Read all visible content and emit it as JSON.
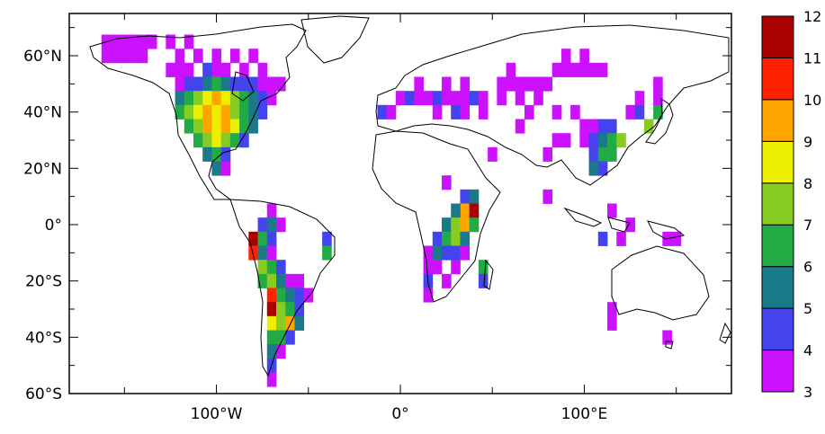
{
  "chart_data": {
    "type": "heatmap",
    "projection": "equirectangular-world-map",
    "title": "",
    "xlabel": "",
    "ylabel": "",
    "x_range": [
      -180,
      180
    ],
    "y_range": [
      -60,
      75
    ],
    "x_ticks": [
      {
        "value": -100,
        "label": "100°W"
      },
      {
        "value": 0,
        "label": "0°"
      },
      {
        "value": 100,
        "label": "100°E"
      }
    ],
    "y_ticks": [
      {
        "value": 60,
        "label": "60°N"
      },
      {
        "value": 40,
        "label": "40°N"
      },
      {
        "value": 20,
        "label": "20°N"
      },
      {
        "value": 0,
        "label": "0°"
      },
      {
        "value": -20,
        "label": "20°S"
      },
      {
        "value": -40,
        "label": "40°S"
      },
      {
        "value": -60,
        "label": "60°S"
      }
    ],
    "colorbar": {
      "position": "right",
      "labels": [
        "12",
        "11",
        "10",
        "9",
        "8",
        "7",
        "6",
        "5",
        "4",
        "3"
      ],
      "bins": [
        {
          "min": 3,
          "max": 4,
          "color": "#cc11ff"
        },
        {
          "min": 4,
          "max": 5,
          "color": "#4444ee"
        },
        {
          "min": 5,
          "max": 6,
          "color": "#1a7a8a"
        },
        {
          "min": 6,
          "max": 7,
          "color": "#22aa44"
        },
        {
          "min": 7,
          "max": 8,
          "color": "#88cc22"
        },
        {
          "min": 8,
          "max": 9,
          "color": "#eeee00"
        },
        {
          "min": 9,
          "max": 10,
          "color": "#ffa500"
        },
        {
          "min": 10,
          "max": 11,
          "color": "#ff2200"
        },
        {
          "min": 11,
          "max": 12,
          "color": "#aa0000"
        }
      ]
    },
    "cell_size_deg": 5,
    "cells": [
      {
        "lon": -160,
        "lat": 65,
        "v": 3
      },
      {
        "lon": -155,
        "lat": 65,
        "v": 3
      },
      {
        "lon": -150,
        "lat": 65,
        "v": 3
      },
      {
        "lon": -145,
        "lat": 65,
        "v": 3
      },
      {
        "lon": -140,
        "lat": 65,
        "v": 3
      },
      {
        "lon": -135,
        "lat": 65,
        "v": 3
      },
      {
        "lon": -125,
        "lat": 65,
        "v": 3
      },
      {
        "lon": -115,
        "lat": 65,
        "v": 3
      },
      {
        "lon": -160,
        "lat": 60,
        "v": 3
      },
      {
        "lon": -155,
        "lat": 60,
        "v": 3
      },
      {
        "lon": -150,
        "lat": 60,
        "v": 3
      },
      {
        "lon": -145,
        "lat": 60,
        "v": 3
      },
      {
        "lon": -140,
        "lat": 60,
        "v": 3
      },
      {
        "lon": -120,
        "lat": 60,
        "v": 3
      },
      {
        "lon": -110,
        "lat": 60,
        "v": 3
      },
      {
        "lon": -100,
        "lat": 60,
        "v": 3
      },
      {
        "lon": -90,
        "lat": 60,
        "v": 3
      },
      {
        "lon": -80,
        "lat": 60,
        "v": 3
      },
      {
        "lon": -125,
        "lat": 55,
        "v": 3
      },
      {
        "lon": -120,
        "lat": 55,
        "v": 3
      },
      {
        "lon": -115,
        "lat": 55,
        "v": 3
      },
      {
        "lon": -105,
        "lat": 55,
        "v": 4
      },
      {
        "lon": -100,
        "lat": 55,
        "v": 3
      },
      {
        "lon": -95,
        "lat": 55,
        "v": 3
      },
      {
        "lon": -85,
        "lat": 55,
        "v": 3
      },
      {
        "lon": -75,
        "lat": 55,
        "v": 3
      },
      {
        "lon": -120,
        "lat": 50,
        "v": 3
      },
      {
        "lon": -115,
        "lat": 50,
        "v": 4
      },
      {
        "lon": -110,
        "lat": 50,
        "v": 4
      },
      {
        "lon": -105,
        "lat": 50,
        "v": 5
      },
      {
        "lon": -100,
        "lat": 50,
        "v": 6
      },
      {
        "lon": -95,
        "lat": 50,
        "v": 5
      },
      {
        "lon": -90,
        "lat": 50,
        "v": 4
      },
      {
        "lon": -85,
        "lat": 50,
        "v": 4
      },
      {
        "lon": -80,
        "lat": 50,
        "v": 4
      },
      {
        "lon": -75,
        "lat": 50,
        "v": 3
      },
      {
        "lon": -70,
        "lat": 50,
        "v": 3
      },
      {
        "lon": -65,
        "lat": 50,
        "v": 3
      },
      {
        "lon": -120,
        "lat": 45,
        "v": 5
      },
      {
        "lon": -115,
        "lat": 45,
        "v": 6
      },
      {
        "lon": -110,
        "lat": 45,
        "v": 7
      },
      {
        "lon": -105,
        "lat": 45,
        "v": 8
      },
      {
        "lon": -100,
        "lat": 45,
        "v": 9
      },
      {
        "lon": -95,
        "lat": 45,
        "v": 8
      },
      {
        "lon": -90,
        "lat": 45,
        "v": 7
      },
      {
        "lon": -85,
        "lat": 45,
        "v": 6
      },
      {
        "lon": -80,
        "lat": 45,
        "v": 5
      },
      {
        "lon": -75,
        "lat": 45,
        "v": 4
      },
      {
        "lon": -70,
        "lat": 45,
        "v": 3
      },
      {
        "lon": -120,
        "lat": 40,
        "v": 6
      },
      {
        "lon": -115,
        "lat": 40,
        "v": 7
      },
      {
        "lon": -110,
        "lat": 40,
        "v": 8
      },
      {
        "lon": -105,
        "lat": 40,
        "v": 9
      },
      {
        "lon": -100,
        "lat": 40,
        "v": 8
      },
      {
        "lon": -95,
        "lat": 40,
        "v": 9
      },
      {
        "lon": -90,
        "lat": 40,
        "v": 7
      },
      {
        "lon": -85,
        "lat": 40,
        "v": 6
      },
      {
        "lon": -80,
        "lat": 40,
        "v": 5
      },
      {
        "lon": -75,
        "lat": 40,
        "v": 4
      },
      {
        "lon": -115,
        "lat": 35,
        "v": 6
      },
      {
        "lon": -110,
        "lat": 35,
        "v": 7
      },
      {
        "lon": -105,
        "lat": 35,
        "v": 9
      },
      {
        "lon": -100,
        "lat": 35,
        "v": 8
      },
      {
        "lon": -95,
        "lat": 35,
        "v": 9
      },
      {
        "lon": -90,
        "lat": 35,
        "v": 8
      },
      {
        "lon": -85,
        "lat": 35,
        "v": 6
      },
      {
        "lon": -80,
        "lat": 35,
        "v": 5
      },
      {
        "lon": -110,
        "lat": 30,
        "v": 6
      },
      {
        "lon": -105,
        "lat": 30,
        "v": 7
      },
      {
        "lon": -100,
        "lat": 30,
        "v": 8
      },
      {
        "lon": -95,
        "lat": 30,
        "v": 7
      },
      {
        "lon": -90,
        "lat": 30,
        "v": 6
      },
      {
        "lon": -85,
        "lat": 30,
        "v": 4
      },
      {
        "lon": -105,
        "lat": 25,
        "v": 5
      },
      {
        "lon": -100,
        "lat": 25,
        "v": 6
      },
      {
        "lon": -95,
        "lat": 25,
        "v": 4
      },
      {
        "lon": -100,
        "lat": 20,
        "v": 5
      },
      {
        "lon": -95,
        "lat": 20,
        "v": 3
      },
      {
        "lon": -70,
        "lat": 5,
        "v": 3
      },
      {
        "lon": -75,
        "lat": 0,
        "v": 4
      },
      {
        "lon": -70,
        "lat": 0,
        "v": 5
      },
      {
        "lon": -65,
        "lat": 0,
        "v": 3
      },
      {
        "lon": -80,
        "lat": -5,
        "v": 11
      },
      {
        "lon": -75,
        "lat": -5,
        "v": 6
      },
      {
        "lon": -70,
        "lat": -5,
        "v": 4
      },
      {
        "lon": -40,
        "lat": -5,
        "v": 4
      },
      {
        "lon": -80,
        "lat": -10,
        "v": 10
      },
      {
        "lon": -75,
        "lat": -10,
        "v": 5
      },
      {
        "lon": -70,
        "lat": -10,
        "v": 3
      },
      {
        "lon": -40,
        "lat": -10,
        "v": 6
      },
      {
        "lon": -75,
        "lat": -15,
        "v": 7
      },
      {
        "lon": -70,
        "lat": -15,
        "v": 6
      },
      {
        "lon": -65,
        "lat": -15,
        "v": 4
      },
      {
        "lon": -75,
        "lat": -20,
        "v": 6
      },
      {
        "lon": -70,
        "lat": -20,
        "v": 7
      },
      {
        "lon": -65,
        "lat": -20,
        "v": 5
      },
      {
        "lon": -60,
        "lat": -20,
        "v": 3
      },
      {
        "lon": -55,
        "lat": -20,
        "v": 3
      },
      {
        "lon": -70,
        "lat": -25,
        "v": 10
      },
      {
        "lon": -65,
        "lat": -25,
        "v": 6
      },
      {
        "lon": -60,
        "lat": -25,
        "v": 5
      },
      {
        "lon": -55,
        "lat": -25,
        "v": 4
      },
      {
        "lon": -50,
        "lat": -25,
        "v": 3
      },
      {
        "lon": -70,
        "lat": -30,
        "v": 11
      },
      {
        "lon": -65,
        "lat": -30,
        "v": 7
      },
      {
        "lon": -60,
        "lat": -30,
        "v": 6
      },
      {
        "lon": -55,
        "lat": -30,
        "v": 4
      },
      {
        "lon": -70,
        "lat": -35,
        "v": 8
      },
      {
        "lon": -65,
        "lat": -35,
        "v": 7
      },
      {
        "lon": -60,
        "lat": -35,
        "v": 9
      },
      {
        "lon": -55,
        "lat": -35,
        "v": 5
      },
      {
        "lon": -70,
        "lat": -40,
        "v": 6
      },
      {
        "lon": -65,
        "lat": -40,
        "v": 6
      },
      {
        "lon": -60,
        "lat": -40,
        "v": 4
      },
      {
        "lon": -70,
        "lat": -45,
        "v": 5
      },
      {
        "lon": -65,
        "lat": -45,
        "v": 3
      },
      {
        "lon": -70,
        "lat": -50,
        "v": 4
      },
      {
        "lon": -70,
        "lat": -55,
        "v": 3
      },
      {
        "lon": -10,
        "lat": 40,
        "v": 4
      },
      {
        "lon": -5,
        "lat": 40,
        "v": 3
      },
      {
        "lon": 0,
        "lat": 45,
        "v": 3
      },
      {
        "lon": 5,
        "lat": 45,
        "v": 4
      },
      {
        "lon": 10,
        "lat": 45,
        "v": 3
      },
      {
        "lon": 15,
        "lat": 45,
        "v": 3
      },
      {
        "lon": 20,
        "lat": 45,
        "v": 4
      },
      {
        "lon": 25,
        "lat": 45,
        "v": 3
      },
      {
        "lon": 30,
        "lat": 45,
        "v": 3
      },
      {
        "lon": 35,
        "lat": 45,
        "v": 3
      },
      {
        "lon": 40,
        "lat": 45,
        "v": 4
      },
      {
        "lon": 45,
        "lat": 45,
        "v": 3
      },
      {
        "lon": 20,
        "lat": 40,
        "v": 3
      },
      {
        "lon": 30,
        "lat": 40,
        "v": 4
      },
      {
        "lon": 35,
        "lat": 40,
        "v": 3
      },
      {
        "lon": 45,
        "lat": 40,
        "v": 3
      },
      {
        "lon": 10,
        "lat": 50,
        "v": 3
      },
      {
        "lon": 25,
        "lat": 50,
        "v": 3
      },
      {
        "lon": 35,
        "lat": 50,
        "v": 3
      },
      {
        "lon": 55,
        "lat": 50,
        "v": 3
      },
      {
        "lon": 60,
        "lat": 50,
        "v": 3
      },
      {
        "lon": 65,
        "lat": 50,
        "v": 3
      },
      {
        "lon": 70,
        "lat": 50,
        "v": 3
      },
      {
        "lon": 75,
        "lat": 50,
        "v": 3
      },
      {
        "lon": 80,
        "lat": 50,
        "v": 3
      },
      {
        "lon": 60,
        "lat": 55,
        "v": 3
      },
      {
        "lon": 85,
        "lat": 55,
        "v": 3
      },
      {
        "lon": 90,
        "lat": 55,
        "v": 3
      },
      {
        "lon": 95,
        "lat": 55,
        "v": 3
      },
      {
        "lon": 100,
        "lat": 55,
        "v": 3
      },
      {
        "lon": 105,
        "lat": 55,
        "v": 3
      },
      {
        "lon": 110,
        "lat": 55,
        "v": 3
      },
      {
        "lon": 90,
        "lat": 60,
        "v": 3
      },
      {
        "lon": 100,
        "lat": 60,
        "v": 3
      },
      {
        "lon": 55,
        "lat": 45,
        "v": 3
      },
      {
        "lon": 65,
        "lat": 45,
        "v": 3
      },
      {
        "lon": 75,
        "lat": 45,
        "v": 3
      },
      {
        "lon": 70,
        "lat": 40,
        "v": 3
      },
      {
        "lon": 85,
        "lat": 40,
        "v": 3
      },
      {
        "lon": 95,
        "lat": 40,
        "v": 3
      },
      {
        "lon": 65,
        "lat": 35,
        "v": 3
      },
      {
        "lon": 100,
        "lat": 35,
        "v": 3
      },
      {
        "lon": 105,
        "lat": 35,
        "v": 3
      },
      {
        "lon": 110,
        "lat": 35,
        "v": 4
      },
      {
        "lon": 115,
        "lat": 35,
        "v": 4
      },
      {
        "lon": 85,
        "lat": 30,
        "v": 3
      },
      {
        "lon": 90,
        "lat": 30,
        "v": 3
      },
      {
        "lon": 100,
        "lat": 30,
        "v": 3
      },
      {
        "lon": 105,
        "lat": 30,
        "v": 4
      },
      {
        "lon": 110,
        "lat": 30,
        "v": 5
      },
      {
        "lon": 115,
        "lat": 30,
        "v": 6
      },
      {
        "lon": 120,
        "lat": 30,
        "v": 7
      },
      {
        "lon": 80,
        "lat": 25,
        "v": 3
      },
      {
        "lon": 105,
        "lat": 25,
        "v": 4
      },
      {
        "lon": 110,
        "lat": 25,
        "v": 6
      },
      {
        "lon": 115,
        "lat": 25,
        "v": 6
      },
      {
        "lon": 105,
        "lat": 20,
        "v": 5
      },
      {
        "lon": 110,
        "lat": 20,
        "v": 4
      },
      {
        "lon": 125,
        "lat": 40,
        "v": 3
      },
      {
        "lon": 130,
        "lat": 40,
        "v": 4
      },
      {
        "lon": 135,
        "lat": 35,
        "v": 7
      },
      {
        "lon": 140,
        "lat": 40,
        "v": 6
      },
      {
        "lon": 130,
        "lat": 45,
        "v": 3
      },
      {
        "lon": 140,
        "lat": 45,
        "v": 3
      },
      {
        "lon": 140,
        "lat": 50,
        "v": 3
      },
      {
        "lon": 125,
        "lat": 0,
        "v": 3
      },
      {
        "lon": 115,
        "lat": 5,
        "v": 3
      },
      {
        "lon": 120,
        "lat": -5,
        "v": 3
      },
      {
        "lon": 110,
        "lat": -5,
        "v": 4
      },
      {
        "lon": 145,
        "lat": -5,
        "v": 3
      },
      {
        "lon": 150,
        "lat": -5,
        "v": 3
      },
      {
        "lon": 80,
        "lat": 10,
        "v": 3
      },
      {
        "lon": 115,
        "lat": -30,
        "v": 3
      },
      {
        "lon": 115,
        "lat": -35,
        "v": 3
      },
      {
        "lon": 145,
        "lat": -40,
        "v": 3
      },
      {
        "lon": 25,
        "lat": 15,
        "v": 3
      },
      {
        "lon": 50,
        "lat": 25,
        "v": 3
      },
      {
        "lon": 35,
        "lat": 10,
        "v": 4
      },
      {
        "lon": 40,
        "lat": 10,
        "v": 5
      },
      {
        "lon": 35,
        "lat": 5,
        "v": 9
      },
      {
        "lon": 40,
        "lat": 5,
        "v": 11
      },
      {
        "lon": 30,
        "lat": 5,
        "v": 5
      },
      {
        "lon": 25,
        "lat": 0,
        "v": 5
      },
      {
        "lon": 30,
        "lat": 0,
        "v": 7
      },
      {
        "lon": 35,
        "lat": 0,
        "v": 9
      },
      {
        "lon": 40,
        "lat": 0,
        "v": 6
      },
      {
        "lon": 20,
        "lat": -5,
        "v": 4
      },
      {
        "lon": 25,
        "lat": -5,
        "v": 6
      },
      {
        "lon": 30,
        "lat": -5,
        "v": 7
      },
      {
        "lon": 35,
        "lat": -5,
        "v": 5
      },
      {
        "lon": 15,
        "lat": -10,
        "v": 3
      },
      {
        "lon": 20,
        "lat": -10,
        "v": 5
      },
      {
        "lon": 25,
        "lat": -10,
        "v": 4
      },
      {
        "lon": 30,
        "lat": -10,
        "v": 4
      },
      {
        "lon": 35,
        "lat": -10,
        "v": 3
      },
      {
        "lon": 15,
        "lat": -15,
        "v": 3
      },
      {
        "lon": 20,
        "lat": -15,
        "v": 3
      },
      {
        "lon": 30,
        "lat": -15,
        "v": 3
      },
      {
        "lon": 15,
        "lat": -20,
        "v": 4
      },
      {
        "lon": 25,
        "lat": -20,
        "v": 3
      },
      {
        "lon": 15,
        "lat": -25,
        "v": 3
      },
      {
        "lon": 45,
        "lat": -15,
        "v": 6
      },
      {
        "lon": 45,
        "lat": -20,
        "v": 4
      }
    ]
  }
}
